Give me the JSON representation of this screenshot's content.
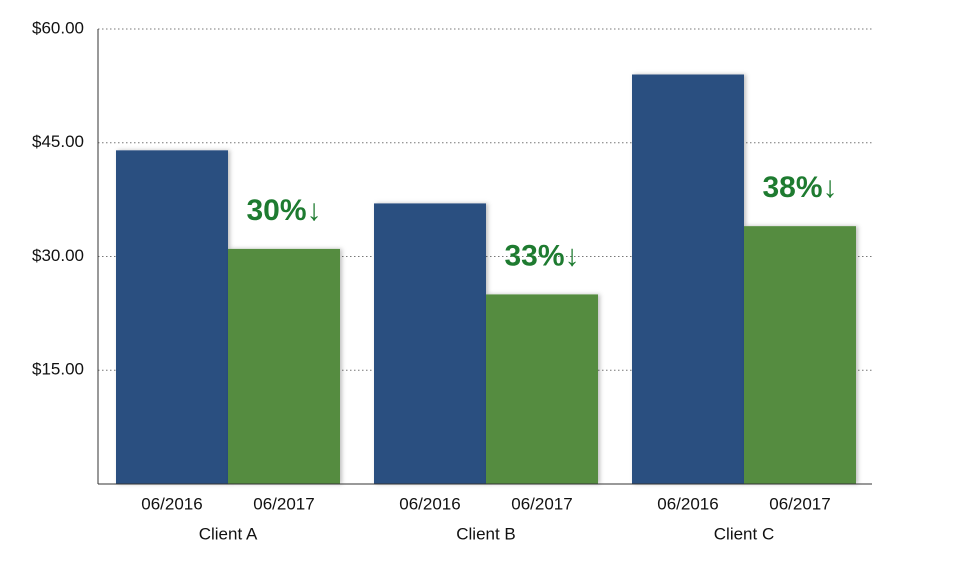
{
  "chart_data": {
    "type": "bar",
    "categories": [
      "Client A",
      "Client B",
      "Client C"
    ],
    "series": [
      {
        "name": "06/2016",
        "color": "#2c4f80",
        "values": [
          44,
          37,
          54
        ]
      },
      {
        "name": "06/2017",
        "color": "#548c3f",
        "values": [
          31,
          25,
          34
        ]
      }
    ],
    "annotations": [
      "30%↓",
      "33%↓",
      "38%↓"
    ],
    "annotation_color": "#1e7b30",
    "ylim": [
      0,
      60
    ],
    "yticks": [
      {
        "value": 15,
        "label": "$15.00"
      },
      {
        "value": 30,
        "label": "$30.00"
      },
      {
        "value": 45,
        "label": "$45.00"
      },
      {
        "value": 60,
        "label": "$60.00"
      }
    ],
    "grid": true
  }
}
